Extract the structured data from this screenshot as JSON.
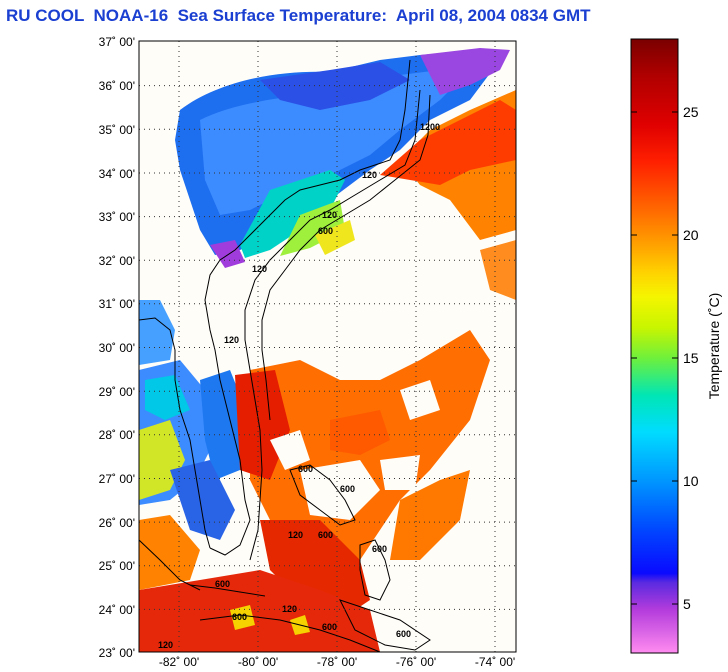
{
  "title": "RU COOL  NOAA-16  Sea Surface Temperature:  April 08, 2004 0834 GMT",
  "map": {
    "lat_labels": [
      "37˚ 00'",
      "36˚ 00'",
      "35˚ 00'",
      "34˚ 00'",
      "33˚ 00'",
      "32˚ 00'",
      "31˚ 00'",
      "30˚ 00'",
      "29˚ 00'",
      "28˚ 00'",
      "27˚ 00'",
      "26˚ 00'",
      "25˚ 00'",
      "24˚ 00'",
      "23˚ 00'"
    ],
    "lon_labels": [
      "-82˚ 00'",
      "-80˚ 00'",
      "-78˚ 00'",
      "-76˚ 00'",
      "-74˚ 00'"
    ],
    "contour_labels": [
      "1200",
      "120",
      "120",
      "600",
      "120",
      "120",
      "600",
      "600",
      "120",
      "600",
      "600",
      "600",
      "600",
      "600",
      "600",
      "120",
      "120"
    ]
  },
  "colorbar": {
    "label": "Temperature (˚C)",
    "ticks": [
      "25",
      "20",
      "15",
      "10",
      "5"
    ],
    "colors": [
      "#7a0000",
      "#c80000",
      "#ff2a00",
      "#ff7a00",
      "#ffc800",
      "#f5f500",
      "#8cf500",
      "#00e6a0",
      "#00d2ff",
      "#0096ff",
      "#0032ff",
      "#1414ff",
      "#8c28d2",
      "#ff50d2",
      "#ff96f0"
    ]
  },
  "legend": {}
}
